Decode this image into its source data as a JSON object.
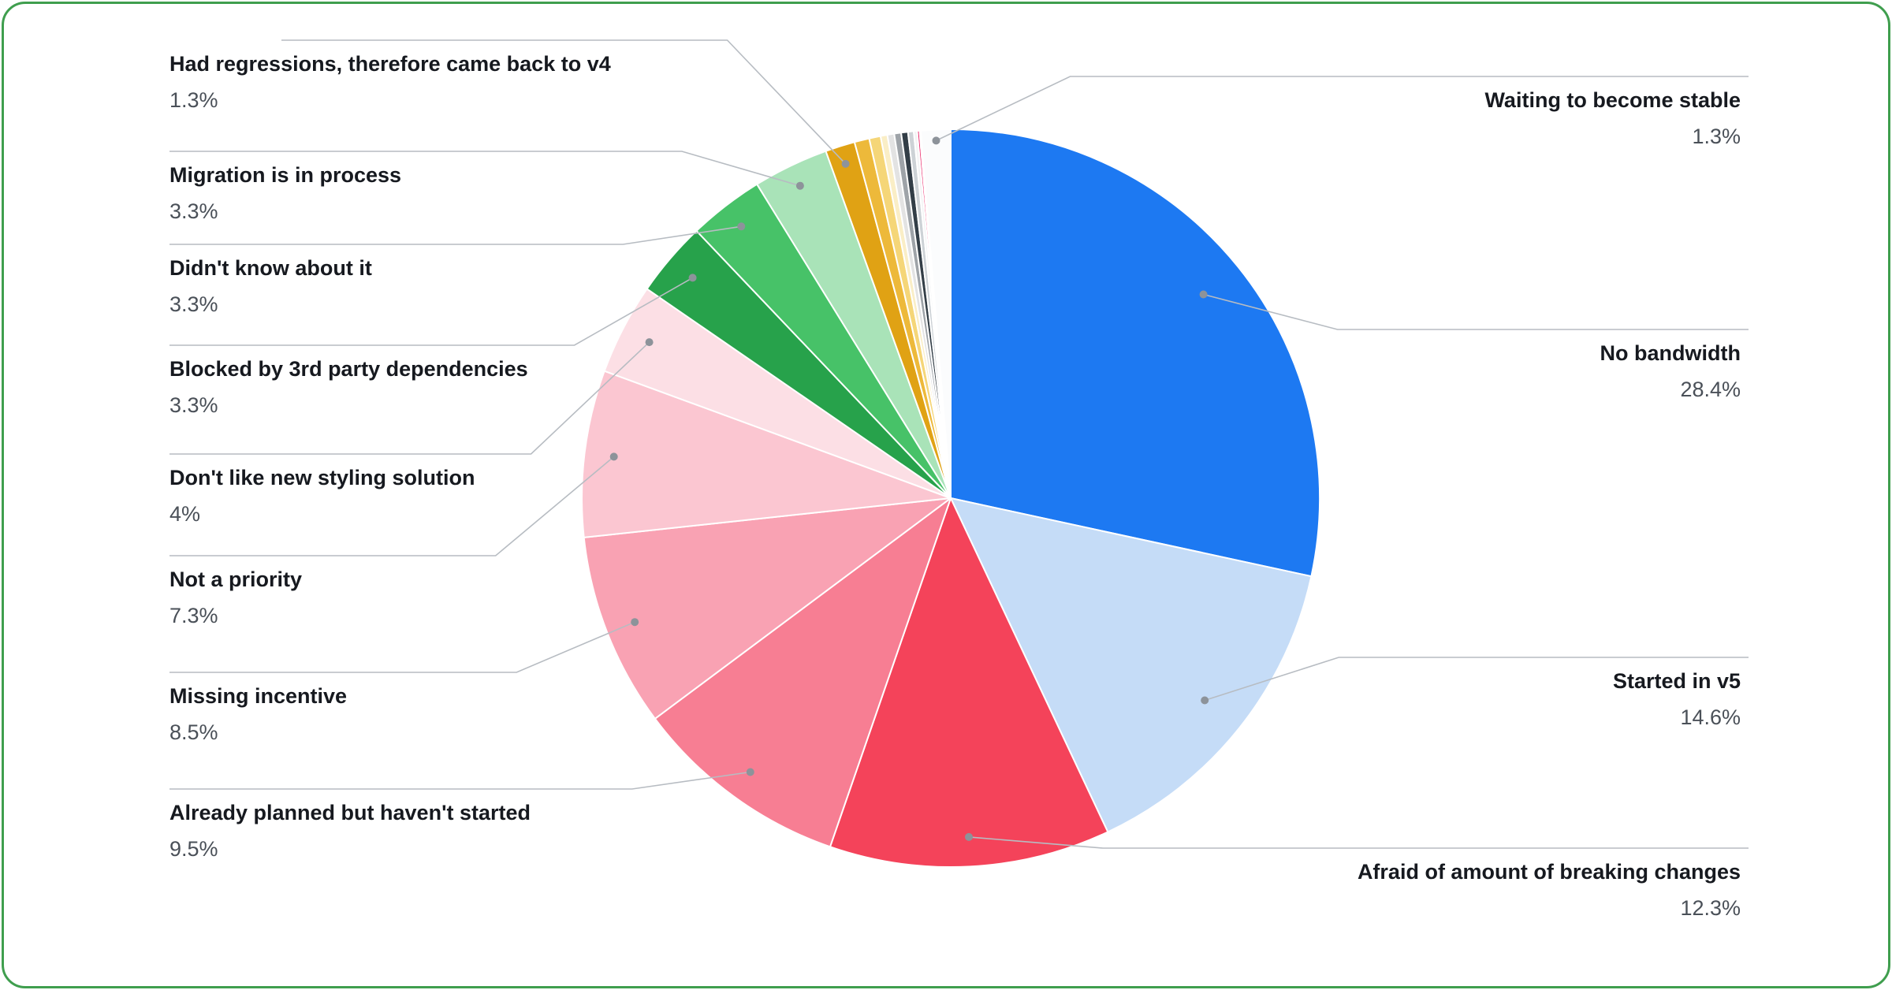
{
  "frame": {
    "background": "#ffffff",
    "border_color": "#3f9e4e"
  },
  "chart_data": {
    "type": "pie",
    "title": "",
    "unit": "%",
    "legend": "callout-labels",
    "start_angle_deg": 0,
    "direction": "clockwise",
    "slices": [
      {
        "label": "No bandwidth",
        "value": 28.4,
        "display": "28.4%",
        "color": "#1d79f2",
        "side": "right"
      },
      {
        "label": "Started in v5",
        "value": 14.6,
        "display": "14.6%",
        "color": "#c5dcf7",
        "side": "right"
      },
      {
        "label": "Afraid of amount of breaking changes",
        "value": 12.3,
        "display": "12.3%",
        "color": "#f4435a",
        "side": "right"
      },
      {
        "label": "Already planned but haven't started",
        "value": 9.5,
        "display": "9.5%",
        "color": "#f77e93",
        "side": "left"
      },
      {
        "label": "Missing incentive",
        "value": 8.5,
        "display": "8.5%",
        "color": "#f9a2b3",
        "side": "left"
      },
      {
        "label": "Not a priority",
        "value": 7.3,
        "display": "7.3%",
        "color": "#fbc6d1",
        "side": "left"
      },
      {
        "label": "Don't like new styling solution",
        "value": 4,
        "display": "4%",
        "color": "#fcdfe5",
        "side": "left"
      },
      {
        "label": "Blocked by 3rd party dependencies",
        "value": 3.3,
        "display": "3.3%",
        "color": "#27a24b",
        "side": "left"
      },
      {
        "label": "Didn't know about it",
        "value": 3.3,
        "display": "3.3%",
        "color": "#47c268",
        "side": "left"
      },
      {
        "label": "Migration is in process",
        "value": 3.3,
        "display": "3.3%",
        "color": "#a9e3b8",
        "side": "left"
      },
      {
        "label": "Had regressions, therefore came back to v4",
        "value": 1.3,
        "display": "1.3%",
        "color": "#e0a214",
        "side": "left"
      },
      {
        "label": "",
        "value": 0.65,
        "display": "",
        "color": "#edb93a",
        "side": null
      },
      {
        "label": "",
        "value": 0.5,
        "display": "",
        "color": "#f5d678",
        "side": null
      },
      {
        "label": "",
        "value": 0.3,
        "display": "",
        "color": "#faeec6",
        "side": null
      },
      {
        "label": "",
        "value": 0.3,
        "display": "",
        "color": "#e3e3e3",
        "side": null
      },
      {
        "label": "",
        "value": 0.3,
        "display": "",
        "color": "#9ea3a8",
        "side": null
      },
      {
        "label": "",
        "value": 0.3,
        "display": "",
        "color": "#333e47",
        "side": null
      },
      {
        "label": "",
        "value": 0.25,
        "display": "",
        "color": "#cdd2d6",
        "side": null
      },
      {
        "label": "",
        "value": 0.15,
        "display": "",
        "color": "#f2f3f4",
        "side": null
      },
      {
        "label": "",
        "value": 0.1,
        "display": "",
        "color": "#e91e63",
        "side": null
      },
      {
        "label": "",
        "value": 0.05,
        "display": "",
        "color": "#e53935",
        "side": null
      },
      {
        "label": "Waiting to become stable",
        "value": 1.3,
        "display": "1.3%",
        "color": "#fbfcfd",
        "side": "right"
      }
    ]
  }
}
